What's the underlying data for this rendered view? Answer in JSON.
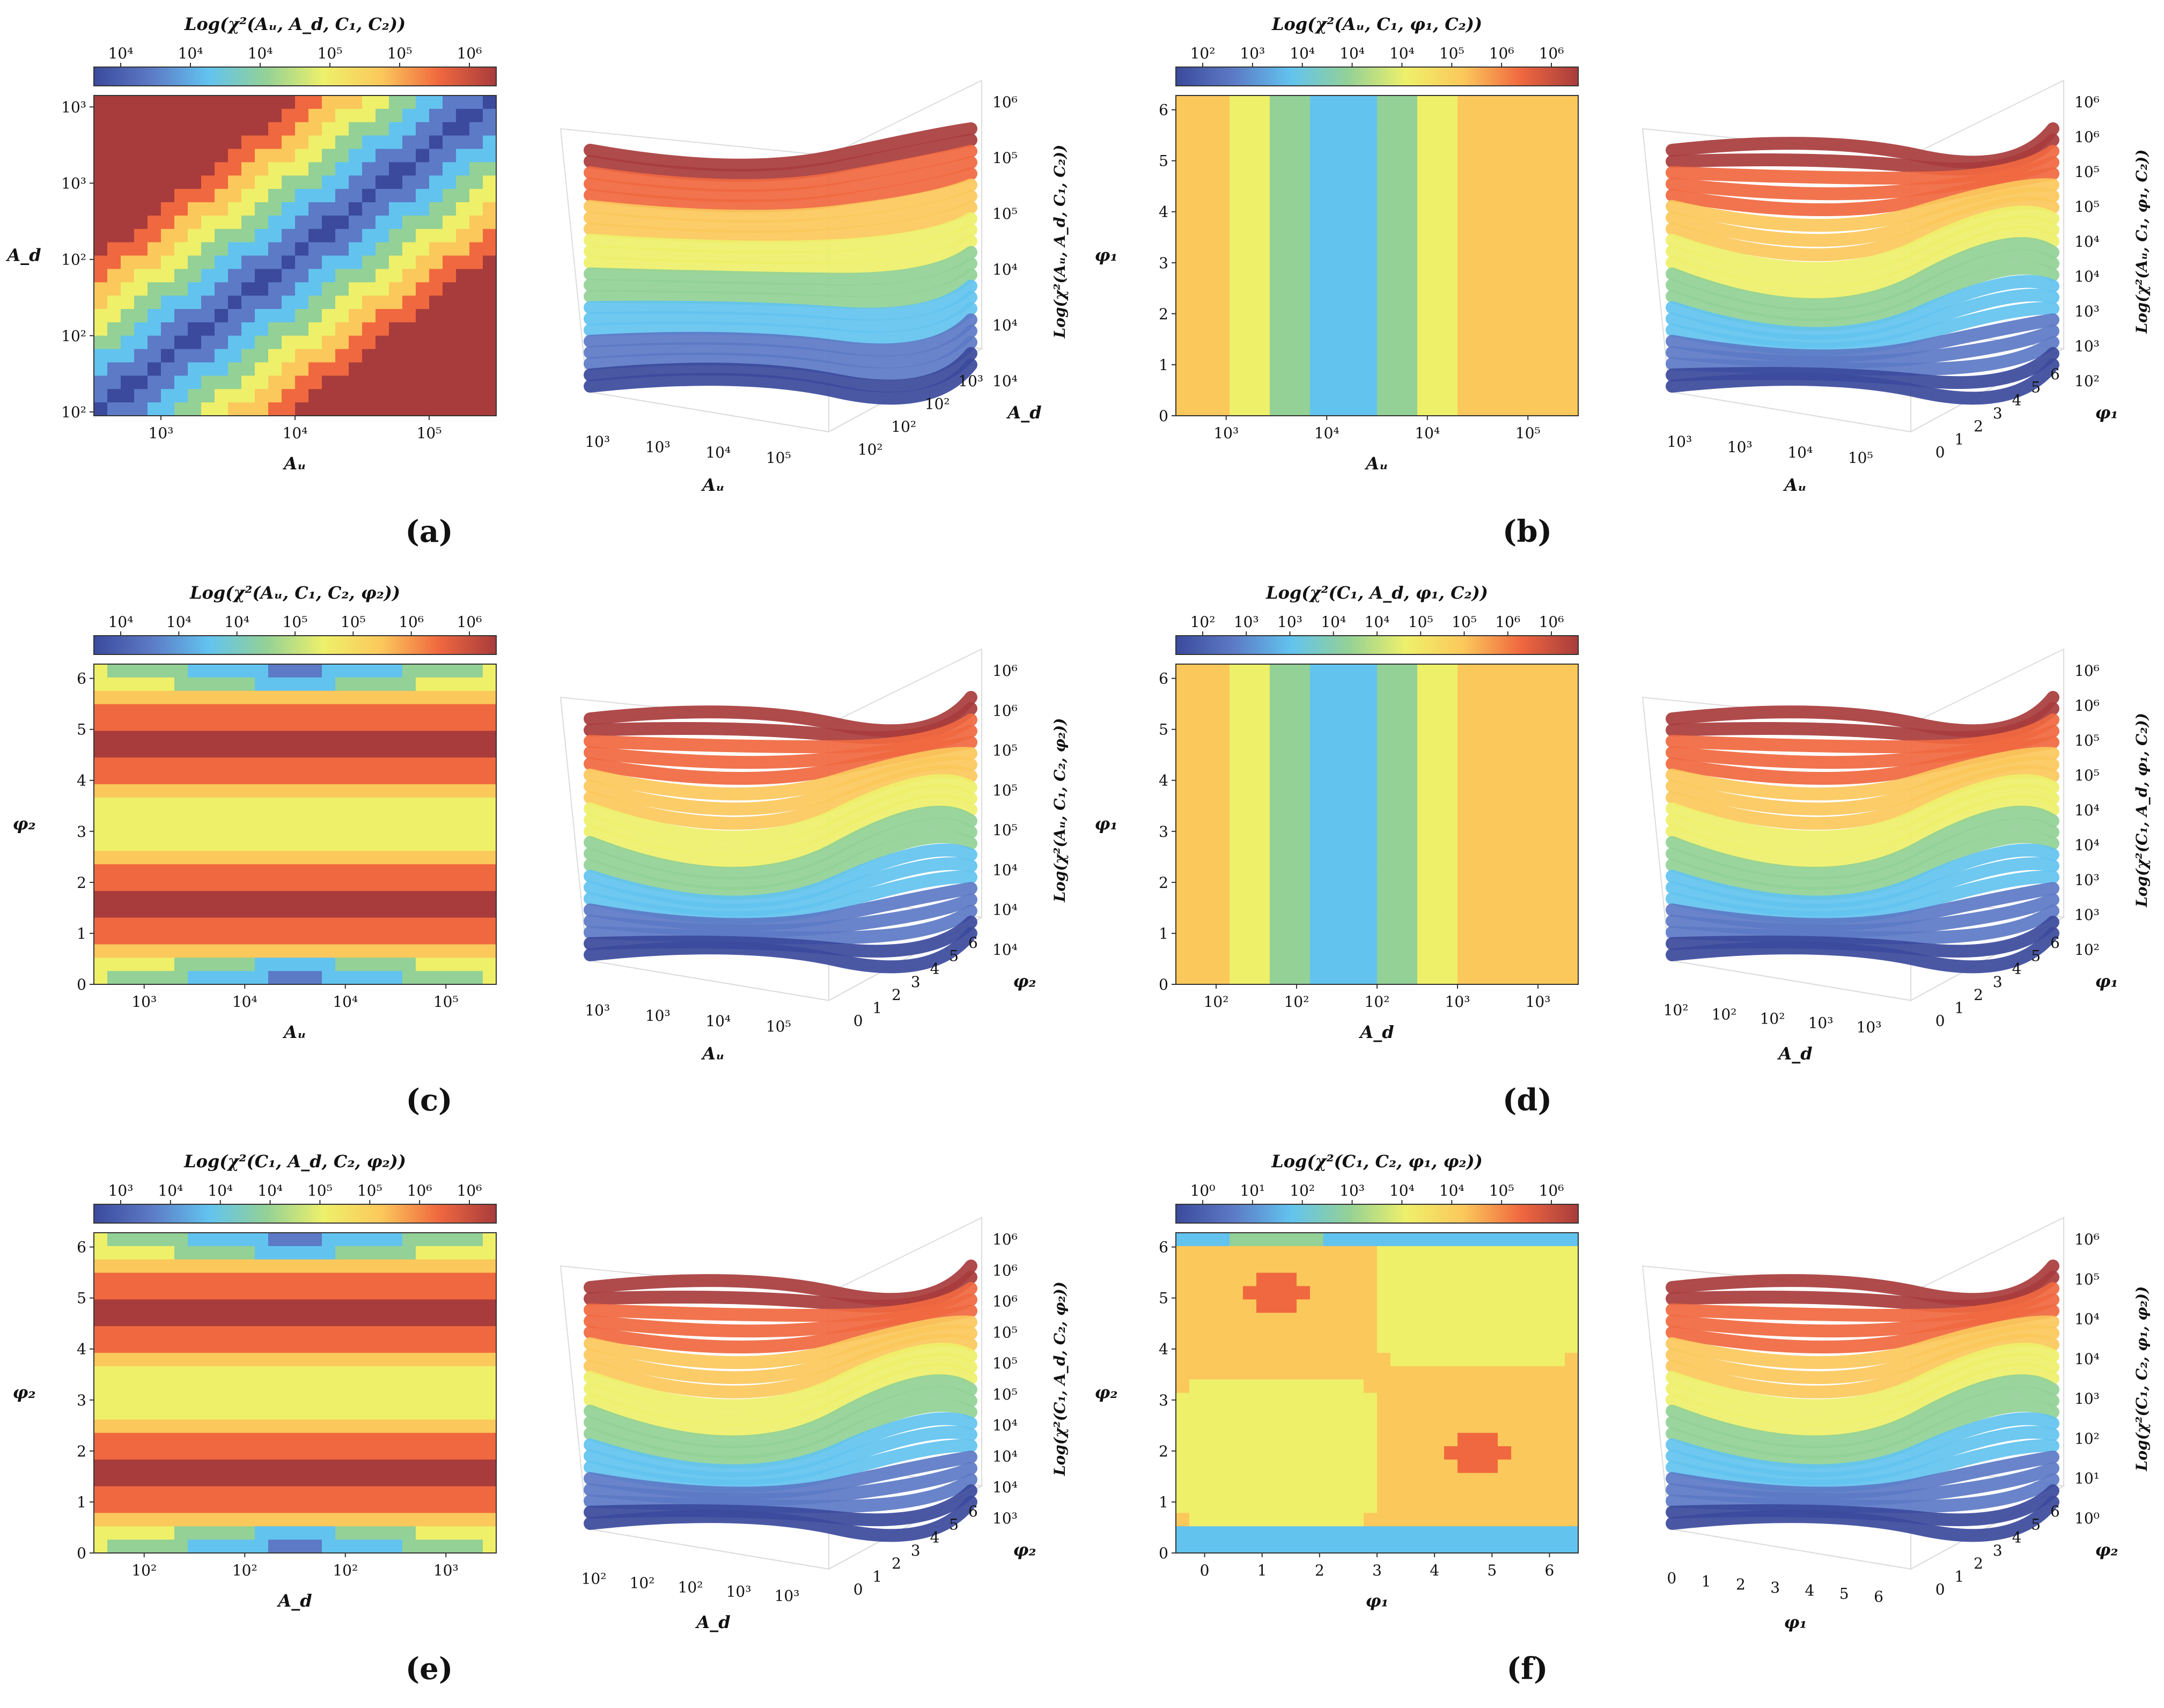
{
  "palette": [
    "#3b4a9c",
    "#5c7ac6",
    "#62c3ef",
    "#93d196",
    "#eef06a",
    "#fbc85b",
    "#f0683f",
    "#a83c3c"
  ],
  "panels": [
    {
      "label": "(a)",
      "contour": {
        "type": "heatmap",
        "title": "Log(χ²(Aᵤ, A_d, C₁, C₂))",
        "colorbar_ticks": [
          "10⁴",
          "10⁴",
          "10⁴",
          "10⁵",
          "10⁵",
          "10⁶"
        ],
        "xlabel": "Aᵤ",
        "ylabel": "A_d",
        "xticks": [
          "10³",
          "10⁴",
          "10⁵"
        ],
        "yticks": [
          "10²",
          "10²",
          "10²",
          "10³",
          "10³"
        ],
        "pattern": "diagonal"
      },
      "surface": {
        "type": "surface",
        "zlabel": "Log(χ²(Aᵤ, A_d, C₁, C₂))",
        "zticks": [
          "10⁴",
          "10⁴",
          "10⁴",
          "10⁵",
          "10⁵",
          "10⁶"
        ],
        "xlabel": "Aᵤ",
        "ylabel": "A_d",
        "xticks": [
          "10³",
          "10³",
          "10⁴",
          "10⁵"
        ],
        "yticks": [
          "10²",
          "10²",
          "10²",
          "10³"
        ]
      }
    },
    {
      "label": "(b)",
      "contour": {
        "type": "heatmap",
        "title": "Log(χ²(Aᵤ, C₁, φ₁, C₂))",
        "colorbar_ticks": [
          "10²",
          "10³",
          "10⁴",
          "10⁴",
          "10⁴",
          "10⁵",
          "10⁶",
          "10⁶"
        ],
        "xlabel": "Aᵤ",
        "ylabel": "φ₁",
        "xticks": [
          "10³",
          "10⁴",
          "10⁴",
          "10⁵"
        ],
        "yticks": [
          "0",
          "1",
          "2",
          "3",
          "4",
          "5",
          "6"
        ],
        "pattern": "vertical"
      },
      "surface": {
        "type": "surface",
        "zlabel": "Log(χ²(Aᵤ, C₁, φ₁, C₂))",
        "zticks": [
          "10²",
          "10³",
          "10³",
          "10⁴",
          "10⁴",
          "10⁵",
          "10⁵",
          "10⁶",
          "10⁶"
        ],
        "xlabel": "Aᵤ",
        "ylabel": "φ₁",
        "xticks": [
          "10³",
          "10³",
          "10⁴",
          "10⁵"
        ],
        "yticks": [
          "0",
          "1",
          "2",
          "3",
          "4",
          "5",
          "6"
        ]
      }
    },
    {
      "label": "(c)",
      "contour": {
        "type": "heatmap",
        "title": "Log(χ²(Aᵤ, C₁, C₂, φ₂))",
        "colorbar_ticks": [
          "10⁴",
          "10⁴",
          "10⁴",
          "10⁵",
          "10⁵",
          "10⁶",
          "10⁶"
        ],
        "xlabel": "Aᵤ",
        "ylabel": "φ₂",
        "xticks": [
          "10³",
          "10⁴",
          "10⁴",
          "10⁵"
        ],
        "yticks": [
          "0",
          "1",
          "2",
          "3",
          "4",
          "5",
          "6"
        ],
        "pattern": "horizontal"
      },
      "surface": {
        "type": "surface",
        "zlabel": "Log(χ²(Aᵤ, C₁, C₂, φ₂))",
        "zticks": [
          "10⁴",
          "10⁴",
          "10⁴",
          "10⁵",
          "10⁵",
          "10⁵",
          "10⁶",
          "10⁶"
        ],
        "xlabel": "Aᵤ",
        "ylabel": "φ₂",
        "xticks": [
          "10³",
          "10³",
          "10⁴",
          "10⁵"
        ],
        "yticks": [
          "0",
          "1",
          "2",
          "3",
          "4",
          "5",
          "6"
        ]
      }
    },
    {
      "label": "(d)",
      "contour": {
        "type": "heatmap",
        "title": "Log(χ²(C₁, A_d, φ₁, C₂))",
        "colorbar_ticks": [
          "10²",
          "10³",
          "10³",
          "10⁴",
          "10⁴",
          "10⁵",
          "10⁵",
          "10⁶",
          "10⁶"
        ],
        "xlabel": "A_d",
        "ylabel": "φ₁",
        "xticks": [
          "10²",
          "10²",
          "10²",
          "10³",
          "10³"
        ],
        "yticks": [
          "0",
          "1",
          "2",
          "3",
          "4",
          "5",
          "6"
        ],
        "pattern": "vertical"
      },
      "surface": {
        "type": "surface",
        "zlabel": "Log(χ²(C₁, A_d, φ₁, C₂))",
        "zticks": [
          "10²",
          "10³",
          "10³",
          "10⁴",
          "10⁴",
          "10⁵",
          "10⁵",
          "10⁶",
          "10⁶"
        ],
        "xlabel": "A_d",
        "ylabel": "φ₁",
        "xticks": [
          "10²",
          "10²",
          "10²",
          "10³",
          "10³"
        ],
        "yticks": [
          "0",
          "1",
          "2",
          "3",
          "4",
          "5",
          "6"
        ]
      }
    },
    {
      "label": "(e)",
      "contour": {
        "type": "heatmap",
        "title": "Log(χ²(C₁, A_d, C₂, φ₂))",
        "colorbar_ticks": [
          "10³",
          "10⁴",
          "10⁴",
          "10⁴",
          "10⁵",
          "10⁵",
          "10⁶",
          "10⁶"
        ],
        "xlabel": "A_d",
        "ylabel": "φ₂",
        "xticks": [
          "10²",
          "10²",
          "10²",
          "10³"
        ],
        "yticks": [
          "0",
          "1",
          "2",
          "3",
          "4",
          "5",
          "6"
        ],
        "pattern": "horizontal"
      },
      "surface": {
        "type": "surface",
        "zlabel": "Log(χ²(C₁, A_d, C₂, φ₂))",
        "zticks": [
          "10³",
          "10⁴",
          "10⁴",
          "10⁴",
          "10⁵",
          "10⁵",
          "10⁵",
          "10⁶",
          "10⁶",
          "10⁶"
        ],
        "xlabel": "A_d",
        "ylabel": "φ₂",
        "xticks": [
          "10²",
          "10²",
          "10²",
          "10³",
          "10³"
        ],
        "yticks": [
          "0",
          "1",
          "2",
          "3",
          "4",
          "5",
          "6"
        ]
      }
    },
    {
      "label": "(f)",
      "contour": {
        "type": "heatmap",
        "title": "Log(χ²(C₁, C₂, φ₁, φ₂))",
        "colorbar_ticks": [
          "10⁰",
          "10¹",
          "10²",
          "10³",
          "10⁴",
          "10⁴",
          "10⁵",
          "10⁶"
        ],
        "xlabel": "φ₁",
        "ylabel": "φ₂",
        "xticks": [
          "0",
          "1",
          "2",
          "3",
          "4",
          "5",
          "6"
        ],
        "yticks": [
          "0",
          "1",
          "2",
          "3",
          "4",
          "5",
          "6"
        ],
        "pattern": "blobs"
      },
      "surface": {
        "type": "surface",
        "zlabel": "Log(χ²(C₁, C₂, φ₁, φ₂))",
        "zticks": [
          "10⁰",
          "10¹",
          "10²",
          "10³",
          "10⁴",
          "10⁴",
          "10⁵",
          "10⁶"
        ],
        "xlabel": "φ₁",
        "ylabel": "φ₂",
        "xticks": [
          "0",
          "1",
          "2",
          "3",
          "4",
          "5",
          "6"
        ],
        "yticks": [
          "0",
          "1",
          "2",
          "3",
          "4",
          "5",
          "6"
        ]
      }
    }
  ]
}
